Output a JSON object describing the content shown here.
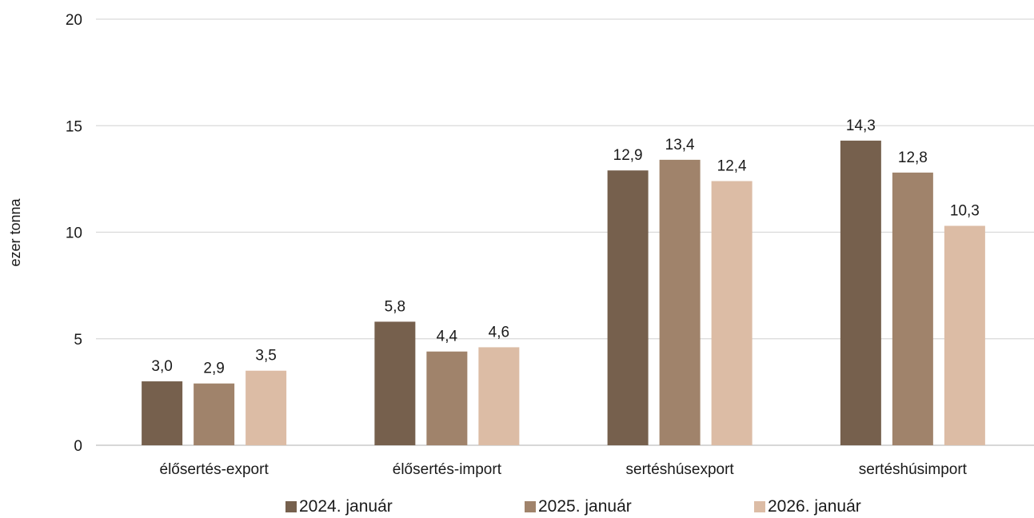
{
  "chart_data": {
    "type": "bar",
    "title": "",
    "xlabel": "",
    "ylabel": "ezer tonna",
    "ylim": [
      0,
      20
    ],
    "yticks": [
      "0",
      "5",
      "10",
      "15",
      "20"
    ],
    "grid": true,
    "legend_position": "bottom",
    "categories": [
      "élősertés-export",
      "élősertés-import",
      "sertéshúsexport",
      "sertéshúsimport"
    ],
    "series": [
      {
        "name": "2024. január",
        "color": "#76604d",
        "values": [
          3.0,
          5.8,
          12.9,
          14.3
        ],
        "labels": [
          "3,0",
          "5,8",
          "12,9",
          "14,3"
        ]
      },
      {
        "name": "2025. január",
        "color": "#a0836b",
        "values": [
          2.9,
          4.4,
          13.4,
          12.8
        ],
        "labels": [
          "2,9",
          "4,4",
          "13,4",
          "12,8"
        ]
      },
      {
        "name": "2026. január",
        "color": "#dcbca5",
        "values": [
          3.5,
          4.6,
          12.4,
          10.3
        ],
        "labels": [
          "3,5",
          "4,6",
          "12,4",
          "10,3"
        ]
      }
    ]
  }
}
